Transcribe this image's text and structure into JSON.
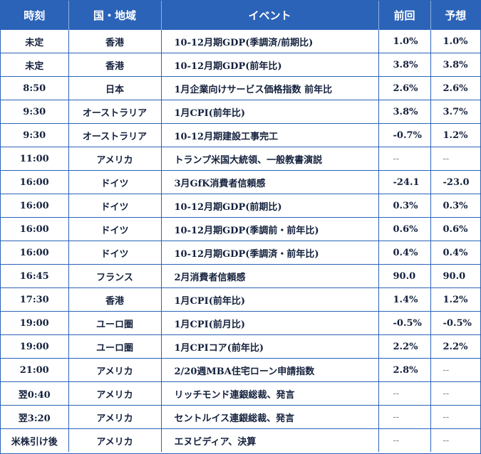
{
  "table": {
    "headers": {
      "time": "時刻",
      "country": "国・地域",
      "event": "イベント",
      "previous": "前回",
      "forecast": "予想"
    },
    "rows": [
      {
        "time": "未定",
        "country": "香港",
        "event": "10-12月期GDP(季調済/前期比)",
        "previous": "1.0%",
        "forecast": "1.0%"
      },
      {
        "time": "未定",
        "country": "香港",
        "event": "10-12月期GDP(前年比)",
        "previous": "3.8%",
        "forecast": "3.8%"
      },
      {
        "time": "8:50",
        "country": "日本",
        "event": "1月企業向けサービス価格指数 前年比",
        "previous": "2.6%",
        "forecast": "2.6%"
      },
      {
        "time": "9:30",
        "country": "オーストラリア",
        "event": "1月CPI(前年比)",
        "previous": "3.8%",
        "forecast": "3.7%"
      },
      {
        "time": "9:30",
        "country": "オーストラリア",
        "event": "10-12月期建設工事完工",
        "previous": "-0.7%",
        "forecast": "1.2%"
      },
      {
        "time": "11:00",
        "country": "アメリカ",
        "event": "トランプ米国大統領、一般教書演説",
        "previous": "--",
        "forecast": "--"
      },
      {
        "time": "16:00",
        "country": "ドイツ",
        "event": "3月GfK消費者信頼感",
        "previous": "-24.1",
        "forecast": "-23.0"
      },
      {
        "time": "16:00",
        "country": "ドイツ",
        "event": "10-12月期GDP(前期比)",
        "previous": "0.3%",
        "forecast": "0.3%"
      },
      {
        "time": "16:00",
        "country": "ドイツ",
        "event": "10-12月期GDP(季調前・前年比)",
        "previous": "0.6%",
        "forecast": "0.6%"
      },
      {
        "time": "16:00",
        "country": "ドイツ",
        "event": "10-12月期GDP(季調済・前年比)",
        "previous": "0.4%",
        "forecast": "0.4%"
      },
      {
        "time": "16:45",
        "country": "フランス",
        "event": "2月消費者信頼感",
        "previous": "90.0",
        "forecast": "90.0"
      },
      {
        "time": "17:30",
        "country": "香港",
        "event": "1月CPI(前年比)",
        "previous": "1.4%",
        "forecast": "1.2%"
      },
      {
        "time": "19:00",
        "country": "ユーロ圏",
        "event": "1月CPI(前月比)",
        "previous": "-0.5%",
        "forecast": "-0.5%"
      },
      {
        "time": "19:00",
        "country": "ユーロ圏",
        "event": "1月CPIコア(前年比)",
        "previous": "2.2%",
        "forecast": "2.2%"
      },
      {
        "time": "21:00",
        "country": "アメリカ",
        "event": "2/20週MBA住宅ローン申請指数",
        "previous": "2.8%",
        "forecast": "--"
      },
      {
        "time": "翌0:40",
        "country": "アメリカ",
        "event": "リッチモンド連銀総裁、発言",
        "previous": "--",
        "forecast": "--"
      },
      {
        "time": "翌3:20",
        "country": "アメリカ",
        "event": "セントルイス連銀総裁、発言",
        "previous": "--",
        "forecast": "--"
      },
      {
        "time": "米株引け後",
        "country": "アメリカ",
        "event": "エヌビディア、決算",
        "previous": "--",
        "forecast": "--"
      }
    ]
  },
  "colors": {
    "header_background": "#2b63b8",
    "header_text": "#ffffff",
    "grid_line": "#2b63b8",
    "body_text": "#14213d"
  }
}
